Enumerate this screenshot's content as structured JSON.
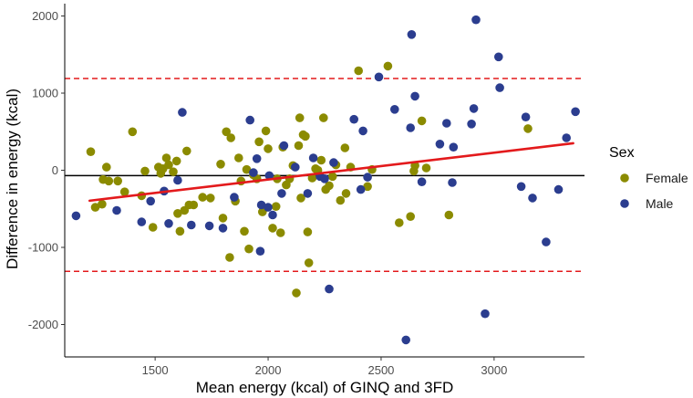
{
  "chart_data": {
    "type": "scatter",
    "title": "",
    "xlabel": "Mean energy (kcal) of GINQ and 3FD",
    "ylabel": "Difference in energy (kcal)",
    "xlim": [
      1100,
      3400
    ],
    "ylim": [
      -2420,
      2160
    ],
    "xticks": [
      1500,
      2000,
      2500,
      3000
    ],
    "yticks": [
      -2000,
      -1000,
      0,
      1000,
      2000
    ],
    "xtick_labels": [
      "1500",
      "2000",
      "2500",
      "3000"
    ],
    "ytick_labels": [
      "-2000",
      "-1000",
      "0",
      "1000",
      "2000"
    ],
    "grid": false,
    "legend": {
      "title": "Sex",
      "position": "right"
    },
    "reference_lines": {
      "mean_difference": -70,
      "upper_limit": 1190,
      "lower_limit": -1310,
      "mean_color": "#000000",
      "limit_color": "#e31a1c"
    },
    "regression_line": {
      "color": "#e31a1c",
      "x": [
        1210,
        3350
      ],
      "y": [
        -395,
        350
      ]
    },
    "series": [
      {
        "name": "Female",
        "color": "#8b8b00",
        "points": [
          [
            1215,
            240
          ],
          [
            1235,
            -480
          ],
          [
            1265,
            -440
          ],
          [
            1270,
            -120
          ],
          [
            1285,
            40
          ],
          [
            1295,
            -140
          ],
          [
            1335,
            -140
          ],
          [
            1365,
            -280
          ],
          [
            1400,
            500
          ],
          [
            1440,
            -330
          ],
          [
            1455,
            -10
          ],
          [
            1490,
            -740
          ],
          [
            1515,
            40
          ],
          [
            1525,
            -40
          ],
          [
            1535,
            20
          ],
          [
            1550,
            160
          ],
          [
            1560,
            70
          ],
          [
            1580,
            -20
          ],
          [
            1595,
            120
          ],
          [
            1600,
            -560
          ],
          [
            1610,
            -790
          ],
          [
            1630,
            -520
          ],
          [
            1640,
            250
          ],
          [
            1650,
            -450
          ],
          [
            1670,
            -450
          ],
          [
            1710,
            -350
          ],
          [
            1745,
            -360
          ],
          [
            1790,
            80
          ],
          [
            1800,
            -620
          ],
          [
            1815,
            500
          ],
          [
            1830,
            -1130
          ],
          [
            1835,
            420
          ],
          [
            1855,
            -400
          ],
          [
            1870,
            160
          ],
          [
            1880,
            -140
          ],
          [
            1895,
            -790
          ],
          [
            1905,
            10
          ],
          [
            1915,
            -1020
          ],
          [
            1935,
            -60
          ],
          [
            1950,
            -110
          ],
          [
            1960,
            370
          ],
          [
            1975,
            -540
          ],
          [
            1980,
            -500
          ],
          [
            1990,
            510
          ],
          [
            2000,
            280
          ],
          [
            2020,
            -750
          ],
          [
            2035,
            -470
          ],
          [
            2040,
            -110
          ],
          [
            2055,
            -810
          ],
          [
            2065,
            300
          ],
          [
            2080,
            -190
          ],
          [
            2095,
            -110
          ],
          [
            2110,
            60
          ],
          [
            2125,
            -1590
          ],
          [
            2135,
            320
          ],
          [
            2140,
            680
          ],
          [
            2145,
            -360
          ],
          [
            2155,
            460
          ],
          [
            2165,
            440
          ],
          [
            2175,
            -800
          ],
          [
            2180,
            -1200
          ],
          [
            2195,
            -100
          ],
          [
            2210,
            20
          ],
          [
            2220,
            0
          ],
          [
            2235,
            130
          ],
          [
            2245,
            680
          ],
          [
            2255,
            -250
          ],
          [
            2270,
            -200
          ],
          [
            2285,
            -80
          ],
          [
            2300,
            70
          ],
          [
            2320,
            -390
          ],
          [
            2340,
            290
          ],
          [
            2345,
            -300
          ],
          [
            2365,
            40
          ],
          [
            2400,
            1290
          ],
          [
            2440,
            -210
          ],
          [
            2460,
            10
          ],
          [
            2530,
            1350
          ],
          [
            2580,
            -680
          ],
          [
            2630,
            -600
          ],
          [
            2645,
            -10
          ],
          [
            2650,
            60
          ],
          [
            2680,
            640
          ],
          [
            2700,
            30
          ],
          [
            2800,
            -580
          ],
          [
            3150,
            540
          ]
        ]
      },
      {
        "name": "Male",
        "color": "#2b3d8f",
        "points": [
          [
            1150,
            -590
          ],
          [
            1330,
            -520
          ],
          [
            1440,
            -670
          ],
          [
            1480,
            -400
          ],
          [
            1540,
            -270
          ],
          [
            1560,
            -690
          ],
          [
            1600,
            -130
          ],
          [
            1620,
            750
          ],
          [
            1660,
            -710
          ],
          [
            1740,
            -720
          ],
          [
            1800,
            -750
          ],
          [
            1850,
            -350
          ],
          [
            1920,
            650
          ],
          [
            1935,
            -30
          ],
          [
            1950,
            150
          ],
          [
            1965,
            -1050
          ],
          [
            1970,
            -450
          ],
          [
            2000,
            -480
          ],
          [
            2005,
            -70
          ],
          [
            2020,
            -580
          ],
          [
            2060,
            -300
          ],
          [
            2070,
            320
          ],
          [
            2120,
            40
          ],
          [
            2175,
            -300
          ],
          [
            2200,
            160
          ],
          [
            2230,
            -80
          ],
          [
            2250,
            -110
          ],
          [
            2270,
            -1540
          ],
          [
            2290,
            100
          ],
          [
            2380,
            660
          ],
          [
            2410,
            -250
          ],
          [
            2420,
            510
          ],
          [
            2440,
            -90
          ],
          [
            2490,
            1210
          ],
          [
            2560,
            790
          ],
          [
            2610,
            -2200
          ],
          [
            2630,
            550
          ],
          [
            2635,
            1760
          ],
          [
            2650,
            960
          ],
          [
            2680,
            -150
          ],
          [
            2760,
            340
          ],
          [
            2790,
            610
          ],
          [
            2815,
            -160
          ],
          [
            2820,
            300
          ],
          [
            2900,
            600
          ],
          [
            2910,
            800
          ],
          [
            2920,
            1950
          ],
          [
            2960,
            -1860
          ],
          [
            3020,
            1470
          ],
          [
            3025,
            1070
          ],
          [
            3120,
            -210
          ],
          [
            3140,
            690
          ],
          [
            3170,
            -360
          ],
          [
            3230,
            -930
          ],
          [
            3285,
            -250
          ],
          [
            3320,
            420
          ],
          [
            3360,
            760
          ]
        ]
      }
    ]
  }
}
